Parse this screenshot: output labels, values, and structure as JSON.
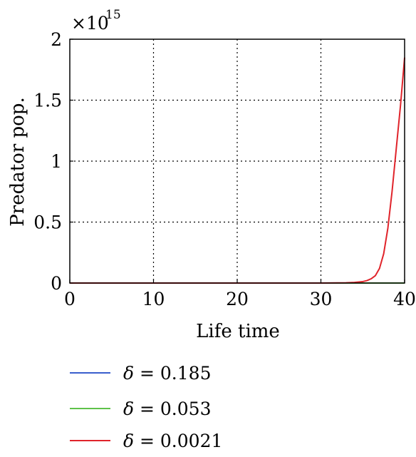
{
  "chart_data": {
    "type": "line",
    "xlabel": "Life time",
    "ylabel": "Predator pop.",
    "xlim": [
      0,
      40
    ],
    "ylim": [
      0,
      2
    ],
    "y_multiplier_label": "×10",
    "y_multiplier_exponent": "15",
    "x_ticks": [
      0,
      10,
      20,
      30,
      40
    ],
    "y_ticks": [
      0,
      0.5,
      1,
      1.5,
      2
    ],
    "x_tick_labels": [
      "0",
      "10",
      "20",
      "30",
      "40"
    ],
    "y_tick_labels": [
      "0",
      "0.5",
      "1",
      "1.5",
      "2"
    ],
    "grid": true,
    "grid_style": "dotted",
    "legend_placement": "below",
    "series": [
      {
        "name": "δ = 0.185",
        "symbol": "δ",
        "value_text": " = 0.185",
        "color": "#3a5fcd",
        "x": [
          0,
          10,
          20,
          30,
          35,
          40
        ],
        "y": [
          0,
          0,
          0,
          0,
          0,
          0
        ]
      },
      {
        "name": "δ = 0.053",
        "symbol": "δ",
        "value_text": " = 0.053",
        "color": "#5ec24a",
        "x": [
          0,
          10,
          20,
          30,
          35,
          40
        ],
        "y": [
          0,
          0,
          0,
          0,
          0,
          0
        ]
      },
      {
        "name": "δ = 0.0021",
        "symbol": "δ",
        "value_text": " = 0.0021",
        "color": "#e0242b",
        "x": [
          0,
          5,
          10,
          15,
          20,
          25,
          30,
          33,
          34,
          35,
          35.5,
          36,
          36.5,
          37,
          37.5,
          38,
          38.5,
          39,
          39.5,
          40
        ],
        "y": [
          0,
          0,
          0,
          0,
          0,
          0,
          0,
          0.002,
          0.005,
          0.012,
          0.02,
          0.035,
          0.06,
          0.12,
          0.24,
          0.45,
          0.75,
          1.1,
          1.45,
          1.85
        ]
      }
    ]
  }
}
